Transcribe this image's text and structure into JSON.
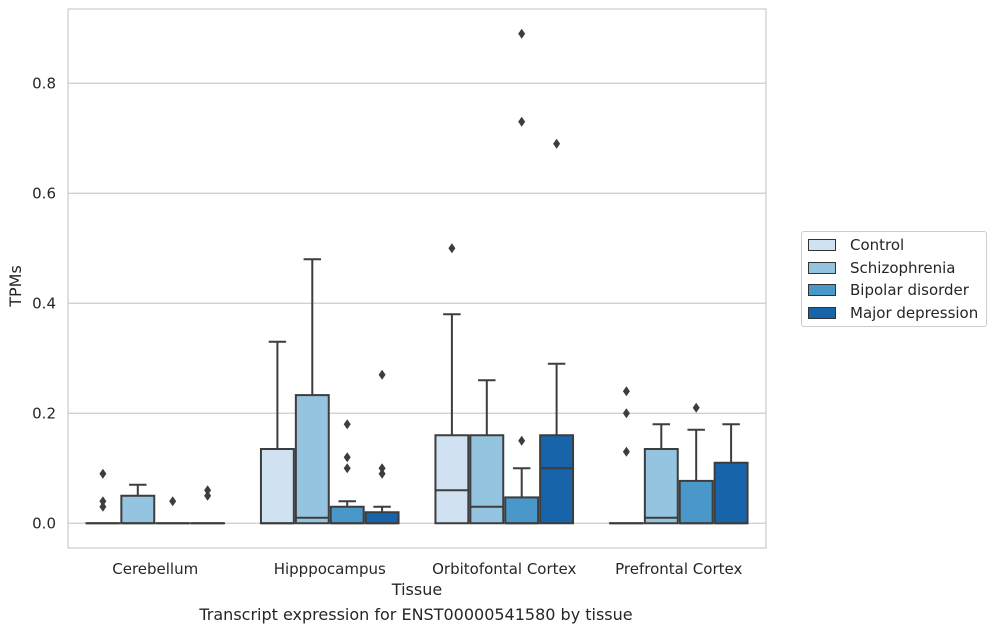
{
  "chart_data": {
    "type": "box",
    "caption": "Transcript expression for ENST00000541580 by tissue",
    "xlabel": "Tissue",
    "ylabel": "TPMs",
    "ylim": [
      -0.045,
      0.935
    ],
    "yticks": [
      "0.0",
      "0.2",
      "0.4",
      "0.6",
      "0.8"
    ],
    "grid": true,
    "legend_position": "right",
    "categories": [
      "Cerebellum",
      "Hipppocampus",
      "Orbitofontal Cortex",
      "Prefrontal Cortex"
    ],
    "series": [
      {
        "name": "Control",
        "color": "#d0e1f2"
      },
      {
        "name": "Schizophrenia",
        "color": "#94c4df"
      },
      {
        "name": "Bipolar disorder",
        "color": "#4a98c9"
      },
      {
        "name": "Major depression",
        "color": "#1764ab"
      }
    ],
    "boxes": [
      [
        {
          "q1": 0,
          "median": 0,
          "q3": 0,
          "whisker_low": 0,
          "whisker_high": 0,
          "outliers": [
            0.09,
            0.04,
            0.03
          ]
        },
        {
          "q1": 0,
          "median": 0,
          "q3": 0.05,
          "whisker_low": 0,
          "whisker_high": 0.07,
          "outliers": []
        },
        {
          "q1": 0,
          "median": 0,
          "q3": 0,
          "whisker_low": 0,
          "whisker_high": 0,
          "outliers": [
            0.04
          ]
        },
        {
          "q1": 0,
          "median": 0,
          "q3": 0,
          "whisker_low": 0,
          "whisker_high": 0,
          "outliers": [
            0.06,
            0.05
          ]
        }
      ],
      [
        {
          "q1": 0,
          "median": 0,
          "q3": 0.135,
          "whisker_low": 0,
          "whisker_high": 0.33,
          "outliers": []
        },
        {
          "q1": 0,
          "median": 0.01,
          "q3": 0.233,
          "whisker_low": 0,
          "whisker_high": 0.48,
          "outliers": []
        },
        {
          "q1": 0,
          "median": 0,
          "q3": 0.03,
          "whisker_low": 0,
          "whisker_high": 0.04,
          "outliers": [
            0.18,
            0.12,
            0.1
          ]
        },
        {
          "q1": 0,
          "median": 0,
          "q3": 0.02,
          "whisker_low": 0,
          "whisker_high": 0.03,
          "outliers": [
            0.27,
            0.1,
            0.09
          ]
        }
      ],
      [
        {
          "q1": 0,
          "median": 0.06,
          "q3": 0.16,
          "whisker_low": 0,
          "whisker_high": 0.38,
          "outliers": [
            0.5
          ]
        },
        {
          "q1": 0,
          "median": 0.03,
          "q3": 0.16,
          "whisker_low": 0,
          "whisker_high": 0.26,
          "outliers": []
        },
        {
          "q1": 0,
          "median": 0,
          "q3": 0.047,
          "whisker_low": 0,
          "whisker_high": 0.1,
          "outliers": [
            0.15,
            0.73,
            0.89
          ]
        },
        {
          "q1": 0,
          "median": 0.1,
          "q3": 0.16,
          "whisker_low": 0,
          "whisker_high": 0.29,
          "outliers": [
            0.69
          ]
        }
      ],
      [
        {
          "q1": 0,
          "median": 0,
          "q3": 0,
          "whisker_low": 0,
          "whisker_high": 0,
          "outliers": [
            0.24,
            0.2,
            0.13
          ]
        },
        {
          "q1": 0,
          "median": 0.01,
          "q3": 0.135,
          "whisker_low": 0,
          "whisker_high": 0.18,
          "outliers": []
        },
        {
          "q1": 0,
          "median": 0,
          "q3": 0.077,
          "whisker_low": 0,
          "whisker_high": 0.17,
          "outliers": [
            0.21
          ]
        },
        {
          "q1": 0,
          "median": 0,
          "q3": 0.11,
          "whisker_low": 0,
          "whisker_high": 0.18,
          "outliers": []
        }
      ]
    ]
  }
}
